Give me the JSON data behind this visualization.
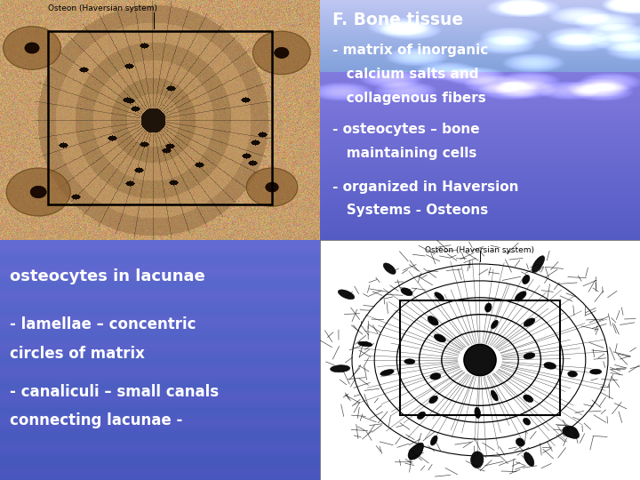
{
  "title_text": "F. Bone tissue",
  "bullet1_line1": "- matrix of inorganic",
  "bullet1_line2": "   calcium salts and",
  "bullet1_line3": "   collagenous fibers",
  "bullet2_line1": "- osteocytes – bone",
  "bullet2_line2": "   maintaining cells",
  "bullet3_line1": "- organized in Haversion",
  "bullet3_line2": "   Systems - Osteons",
  "bottom_line1": "osteocytes in lacunae",
  "bottom_line2": "- lamellae – concentric",
  "bottom_line3": "circles of matrix",
  "bottom_line4": "- canaliculi – small canals",
  "bottom_line5": "connecting lacunae -",
  "label_top": "Osteon (Haversian system)",
  "label_bottom": "Osteon (Haversian system)",
  "text_color": "#FFFFFF"
}
